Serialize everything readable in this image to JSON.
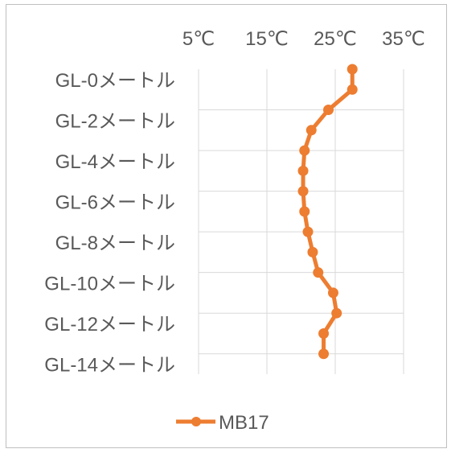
{
  "chart_data": {
    "type": "line",
    "title": "",
    "xlabel": "",
    "ylabel": "",
    "x_axis_position": "top",
    "x_ticks": [
      "5℃",
      "15℃",
      "25℃",
      "35℃"
    ],
    "x_tick_values": [
      5,
      15,
      25,
      35
    ],
    "xlim": [
      5,
      35
    ],
    "y_tick_labels": [
      "GL-0メートル",
      "GL-2メートル",
      "GL-4メートル",
      "GL-6メートル",
      "GL-8メートル",
      "GL-10メートル",
      "GL-12メートル",
      "GL-14メートル"
    ],
    "y_tick_values": [
      0,
      2,
      4,
      6,
      8,
      10,
      12,
      14
    ],
    "ylim": [
      0,
      15
    ],
    "y_inverted": true,
    "grid": true,
    "legend_position": "bottom",
    "series": [
      {
        "name": "MB17",
        "color": "#ED7D31",
        "marker": "circle",
        "points": [
          {
            "depth": 0,
            "temp": 27.5
          },
          {
            "depth": 1,
            "temp": 27.5
          },
          {
            "depth": 2,
            "temp": 24.0
          },
          {
            "depth": 3,
            "temp": 21.5
          },
          {
            "depth": 4,
            "temp": 20.5
          },
          {
            "depth": 5,
            "temp": 20.3
          },
          {
            "depth": 6,
            "temp": 20.3
          },
          {
            "depth": 7,
            "temp": 20.5
          },
          {
            "depth": 8,
            "temp": 21.0
          },
          {
            "depth": 9,
            "temp": 21.7
          },
          {
            "depth": 10,
            "temp": 22.5
          },
          {
            "depth": 11,
            "temp": 24.7
          },
          {
            "depth": 12,
            "temp": 25.2
          },
          {
            "depth": 13,
            "temp": 23.3
          },
          {
            "depth": 14,
            "temp": 23.3
          }
        ]
      }
    ]
  }
}
